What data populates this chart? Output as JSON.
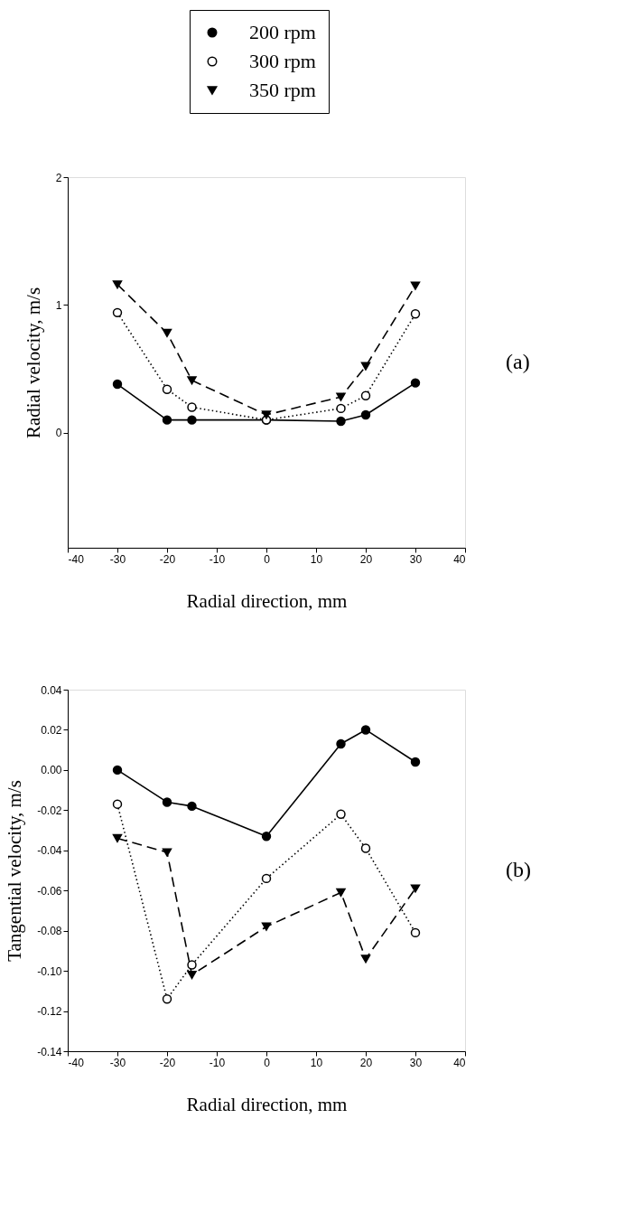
{
  "chart_data": [
    {
      "type": "line",
      "xlabel": "Radial direction, mm",
      "ylabel": "Radial velocity, m/s",
      "annotations": [
        "(a)"
      ],
      "x": [
        -30,
        -20,
        -15,
        0,
        15,
        20,
        30
      ],
      "series": [
        {
          "name": "200 rpm",
          "color": "#000000",
          "marker": "circle",
          "line_style": "solid",
          "values": [
            0.38,
            0.1,
            0.1,
            0.1,
            0.09,
            0.14,
            0.39
          ]
        },
        {
          "name": "300 rpm",
          "color": "#000000",
          "marker": "circle_open",
          "line_style": "dotted",
          "values": [
            0.94,
            0.34,
            0.2,
            0.1,
            0.19,
            0.29,
            0.93
          ]
        },
        {
          "name": "350 rpm",
          "color": "#000000",
          "marker": "triangle",
          "line_style": "dashed",
          "values": [
            1.16,
            0.78,
            0.41,
            0.14,
            0.28,
            0.52,
            1.15
          ]
        }
      ],
      "xlim": [
        -40,
        40
      ],
      "xticks": [
        -40,
        -30,
        -20,
        -10,
        0,
        10,
        20,
        30,
        40
      ],
      "ylim": [
        -0.9,
        2
      ],
      "yticks": [
        {
          "value": 0,
          "label": "0"
        },
        {
          "value": 1,
          "label": "1"
        },
        {
          "value": 2,
          "label": "2"
        }
      ],
      "grid": false,
      "legend": "top"
    },
    {
      "type": "line",
      "xlabel": "Radial direction, mm",
      "ylabel": "Tangential velocity, m/s",
      "annotations": [
        "(b)"
      ],
      "x": [
        -30,
        -20,
        -15,
        0,
        15,
        20,
        30
      ],
      "series": [
        {
          "color": "#000000",
          "marker": "circle",
          "line_style": "solid",
          "values": [
            0.0,
            -0.016,
            -0.018,
            -0.033,
            0.013,
            0.02,
            0.004
          ]
        },
        {
          "color": "#000000",
          "marker": "circle_open",
          "line_style": "dotted",
          "values": [
            -0.017,
            -0.114,
            -0.097,
            -0.054,
            -0.022,
            -0.039,
            -0.081
          ]
        },
        {
          "color": "#000000",
          "marker": "triangle",
          "line_style": "dashed",
          "values": [
            -0.034,
            -0.041,
            -0.102,
            -0.078,
            -0.061,
            -0.094,
            -0.059
          ]
        }
      ],
      "xlim": [
        -40,
        40
      ],
      "xticks": [
        -40,
        -30,
        -20,
        -10,
        0,
        10,
        20,
        30,
        40
      ],
      "ylim": [
        -0.14,
        0.04
      ],
      "yticks": [
        {
          "value": -0.14,
          "label": "-0.14"
        },
        -0.12,
        {
          "value": -0.1,
          "label": "-0.10"
        },
        -0.08,
        -0.06,
        -0.04,
        -0.02,
        {
          "value": 0,
          "label": "0.00"
        },
        0.02,
        0.04
      ],
      "grid": false,
      "legend": false
    }
  ]
}
